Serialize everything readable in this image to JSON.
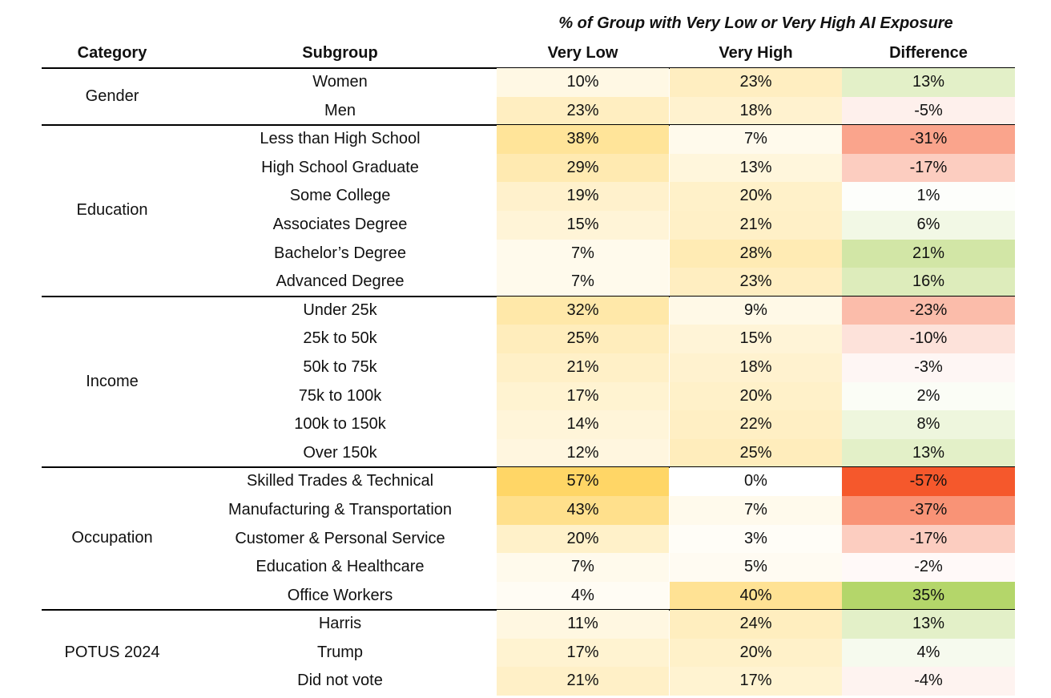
{
  "chart_data": {
    "type": "table",
    "title": "% of Group with Very Low or Very High AI Exposure",
    "columns": [
      "Category",
      "Subgroup",
      "Very Low",
      "Very High",
      "Difference"
    ],
    "colors": {
      "low_max": "#FFD666",
      "neutral": "#FFFFFF",
      "negative_max": "#F5582C",
      "positive_max": "#B4D66A"
    },
    "groups": [
      {
        "category": "Gender",
        "rows": [
          {
            "subgroup": "Women",
            "very_low": "10%",
            "very_high": "23%",
            "difference": "13%"
          },
          {
            "subgroup": "Men",
            "very_low": "23%",
            "very_high": "18%",
            "difference": "-5%"
          }
        ]
      },
      {
        "category": "Education",
        "rows": [
          {
            "subgroup": "Less than High School",
            "very_low": "38%",
            "very_high": "7%",
            "difference": "-31%"
          },
          {
            "subgroup": "High School Graduate",
            "very_low": "29%",
            "very_high": "13%",
            "difference": "-17%"
          },
          {
            "subgroup": "Some College",
            "very_low": "19%",
            "very_high": "20%",
            "difference": "1%"
          },
          {
            "subgroup": "Associates Degree",
            "very_low": "15%",
            "very_high": "21%",
            "difference": "6%"
          },
          {
            "subgroup": "Bachelor’s Degree",
            "very_low": "7%",
            "very_high": "28%",
            "difference": "21%"
          },
          {
            "subgroup": "Advanced Degree",
            "very_low": "7%",
            "very_high": "23%",
            "difference": "16%"
          }
        ]
      },
      {
        "category": "Income",
        "rows": [
          {
            "subgroup": "Under 25k",
            "very_low": "32%",
            "very_high": "9%",
            "difference": "-23%"
          },
          {
            "subgroup": "25k to 50k",
            "very_low": "25%",
            "very_high": "15%",
            "difference": "-10%"
          },
          {
            "subgroup": "50k to 75k",
            "very_low": "21%",
            "very_high": "18%",
            "difference": "-3%"
          },
          {
            "subgroup": "75k to 100k",
            "very_low": "17%",
            "very_high": "20%",
            "difference": "2%"
          },
          {
            "subgroup": "100k to 150k",
            "very_low": "14%",
            "very_high": "22%",
            "difference": "8%"
          },
          {
            "subgroup": "Over 150k",
            "very_low": "12%",
            "very_high": "25%",
            "difference": "13%"
          }
        ]
      },
      {
        "category": "Occupation",
        "rows": [
          {
            "subgroup": "Skilled Trades & Technical",
            "very_low": "57%",
            "very_high": "0%",
            "difference": "-57%"
          },
          {
            "subgroup": "Manufacturing & Transportation",
            "very_low": "43%",
            "very_high": "7%",
            "difference": "-37%"
          },
          {
            "subgroup": "Customer & Personal Service",
            "very_low": "20%",
            "very_high": "3%",
            "difference": "-17%"
          },
          {
            "subgroup": "Education & Healthcare",
            "very_low": "7%",
            "very_high": "5%",
            "difference": "-2%"
          },
          {
            "subgroup": "Office  Workers",
            "very_low": "4%",
            "very_high": "40%",
            "difference": "35%"
          }
        ]
      },
      {
        "category": "POTUS 2024",
        "rows": [
          {
            "subgroup": "Harris",
            "very_low": "11%",
            "very_high": "24%",
            "difference": "13%"
          },
          {
            "subgroup": "Trump",
            "very_low": "17%",
            "very_high": "20%",
            "difference": "4%"
          },
          {
            "subgroup": "Did not vote",
            "very_low": "21%",
            "very_high": "17%",
            "difference": "-4%"
          }
        ]
      }
    ]
  }
}
